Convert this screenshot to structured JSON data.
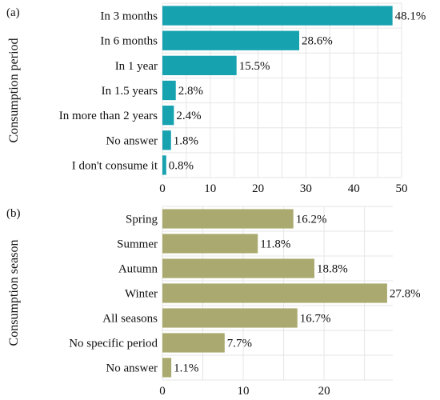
{
  "chart_data": [
    {
      "type": "bar",
      "orientation": "horizontal",
      "panel_label": "(a)",
      "ylabel": "Consumption period",
      "categories": [
        "In 3 months",
        "In 6 months",
        "In 1 year",
        "In 1.5 years",
        "In more than 2 years",
        "No answer",
        "I don't consume it"
      ],
      "values": [
        48.1,
        28.6,
        15.5,
        2.8,
        2.4,
        1.8,
        0.8
      ],
      "value_labels": [
        "48.1%",
        "28.6%",
        "15.5%",
        "2.8%",
        "2.4%",
        "1.8%",
        "0.8%"
      ],
      "xlim": [
        0,
        50
      ],
      "xticks": [
        0,
        10,
        20,
        30,
        40,
        50
      ],
      "xtick_labels": [
        "0",
        "10",
        "20",
        "30",
        "40",
        "50"
      ],
      "bar_color": "#17a2b0",
      "grid": true
    },
    {
      "type": "bar",
      "orientation": "horizontal",
      "panel_label": "(b)",
      "ylabel": "Consumption season",
      "categories": [
        "Spring",
        "Summer",
        "Autumn",
        "Winter",
        "All seasons",
        "No specific period",
        "No answer"
      ],
      "values": [
        16.2,
        11.8,
        18.8,
        27.8,
        16.7,
        7.7,
        1.1
      ],
      "value_labels": [
        "16.2%",
        "11.8%",
        "18.8%",
        "27.8%",
        "16.7%",
        "7.7%",
        "1.1%"
      ],
      "xlim": [
        0,
        28.5
      ],
      "xticks": [
        0,
        10,
        20
      ],
      "xtick_labels": [
        "0",
        "10",
        "20"
      ],
      "bar_color": "#aaaa70",
      "grid": true
    }
  ]
}
